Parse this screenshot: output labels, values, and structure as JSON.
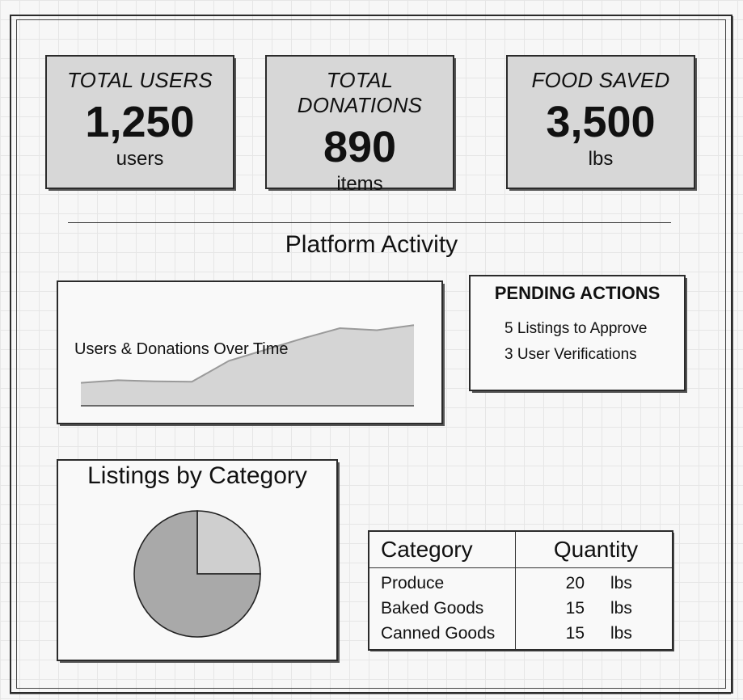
{
  "stats": [
    {
      "label": "TOTAL USERS",
      "value": "1,250",
      "unit": "users"
    },
    {
      "label": "TOTAL DONATIONS",
      "value": "890",
      "unit": "items"
    },
    {
      "label": "FOOD SAVED",
      "value": "3,500",
      "unit": "lbs"
    }
  ],
  "activity": {
    "section_title": "Platform Activity",
    "chart_label": "Users & Donations Over Time",
    "fill_color": "#d5d5d5",
    "line_color": "#9a9a9a",
    "chart_data": {
      "type": "area",
      "title": "Users & Donations Over Time",
      "x": [
        0,
        1,
        2,
        3,
        4,
        5,
        6,
        7,
        8,
        9
      ],
      "values": [
        0.45,
        0.5,
        0.48,
        0.47,
        0.88,
        1.1,
        1.32,
        1.52,
        1.48,
        1.58
      ],
      "ylim": [
        0,
        1.9
      ],
      "grid": false
    }
  },
  "pending": {
    "title": "PENDING ACTIONS",
    "items": [
      "5 Listings to Approve",
      "3 User Verifications"
    ]
  },
  "category": {
    "title": "Listings by Category",
    "colors": [
      "#cfcfcf",
      "#a9a9a9"
    ],
    "chart_data": {
      "type": "pie",
      "categories": [
        "",
        ""
      ],
      "values": [
        25,
        75
      ],
      "start_angle_deg": 0
    }
  },
  "table": {
    "headers": [
      "Category",
      "Quantity"
    ],
    "rows": [
      {
        "name": "Produce",
        "qty": "20",
        "unit": "lbs"
      },
      {
        "name": "Baked Goods",
        "qty": "15",
        "unit": "lbs"
      },
      {
        "name": "Canned Goods",
        "qty": "15",
        "unit": "lbs"
      }
    ]
  }
}
